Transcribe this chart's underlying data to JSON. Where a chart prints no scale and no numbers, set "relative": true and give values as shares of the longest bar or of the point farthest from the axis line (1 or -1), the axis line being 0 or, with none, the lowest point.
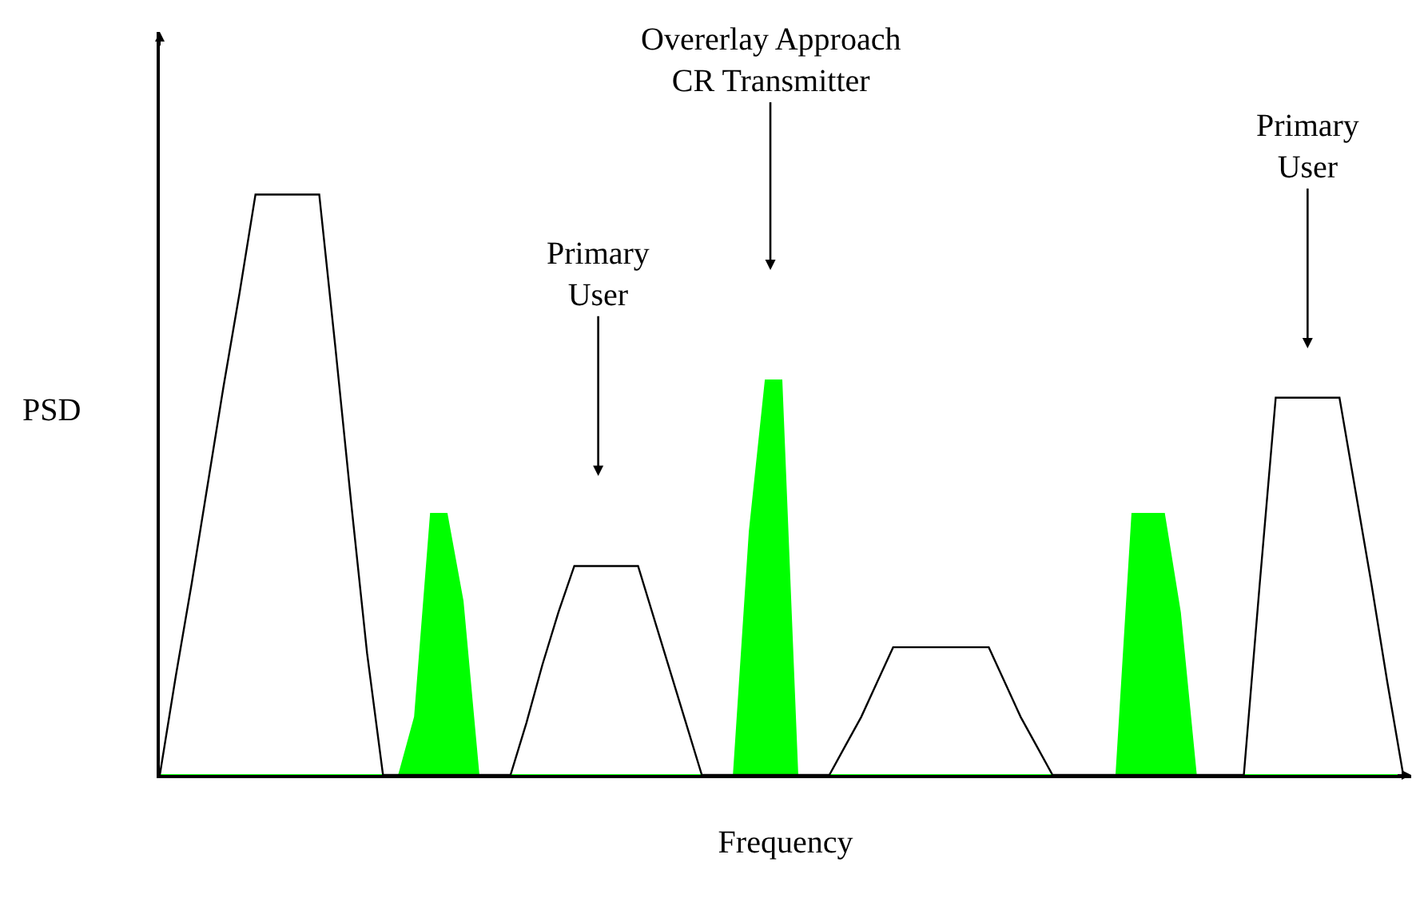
{
  "chart_data": {
    "type": "line",
    "relative": true,
    "xlabel": "Frequency",
    "ylabel": "PSD",
    "categories": [
      null,
      null,
      null,
      null,
      null,
      null,
      null,
      null,
      null,
      null,
      null,
      null,
      null,
      null,
      null,
      null,
      null,
      null,
      null,
      null,
      null,
      null,
      null,
      null,
      null,
      null,
      null,
      null,
      null,
      null,
      null,
      null,
      null,
      null,
      null,
      null,
      null,
      null,
      null,
      null,
      null,
      null,
      null,
      null,
      null,
      null,
      null,
      null,
      null,
      null,
      null,
      null,
      null,
      null,
      null,
      null,
      null,
      null,
      null,
      null,
      null,
      null,
      null,
      null,
      null,
      null,
      null,
      null,
      null,
      null,
      null,
      null,
      null,
      null,
      null,
      null,
      null,
      null,
      null
    ],
    "series": [
      {
        "color": "#000000",
        "values": [
          0,
          0.17,
          0.33,
          0.5,
          0.67,
          0.83,
          1,
          1,
          1,
          1,
          1,
          0.74,
          0.47,
          0.21,
          0,
          0,
          0,
          0,
          0,
          0,
          0,
          0,
          0,
          0.09,
          0.19,
          0.28,
          0.36,
          0.36,
          0.36,
          0.36,
          0.36,
          0.27,
          0.18,
          0.09,
          0,
          0,
          0,
          0,
          0,
          0,
          0,
          0,
          0,
          0.05,
          0.1,
          0.16,
          0.22,
          0.22,
          0.22,
          0.22,
          0.22,
          0.22,
          0.22,
          0.16,
          0.1,
          0.05,
          0,
          0,
          0,
          0,
          0,
          0,
          0,
          0,
          0,
          0,
          0,
          0,
          0,
          0.33,
          0.65,
          0.65,
          0.65,
          0.65,
          0.65,
          0.49,
          0.33,
          0.16,
          0
        ]
      },
      {
        "type": "area",
        "color": "#00ff00",
        "values": [
          0,
          0,
          0,
          0,
          0,
          0,
          0,
          0,
          0,
          0,
          0,
          0,
          0,
          0,
          0,
          0,
          0.1,
          0.45,
          0.45,
          0.3,
          0,
          0,
          0,
          0,
          0,
          0,
          0,
          0,
          0,
          0,
          0,
          0,
          0,
          0,
          0,
          0,
          0,
          0.42,
          0.68,
          0.68,
          0,
          0,
          0,
          0,
          0,
          0,
          0,
          0,
          0,
          0,
          0,
          0,
          0,
          0,
          0,
          0,
          0,
          0,
          0,
          0,
          0,
          0.45,
          0.45,
          0.45,
          0.28,
          0,
          0,
          0,
          0,
          0,
          0,
          0,
          0,
          0,
          0,
          0,
          0,
          0,
          0
        ]
      }
    ],
    "annotations": [
      "Primary\nUser",
      "Overerlay Approach\nCR Transmitter",
      "Primary\nUser"
    ]
  }
}
